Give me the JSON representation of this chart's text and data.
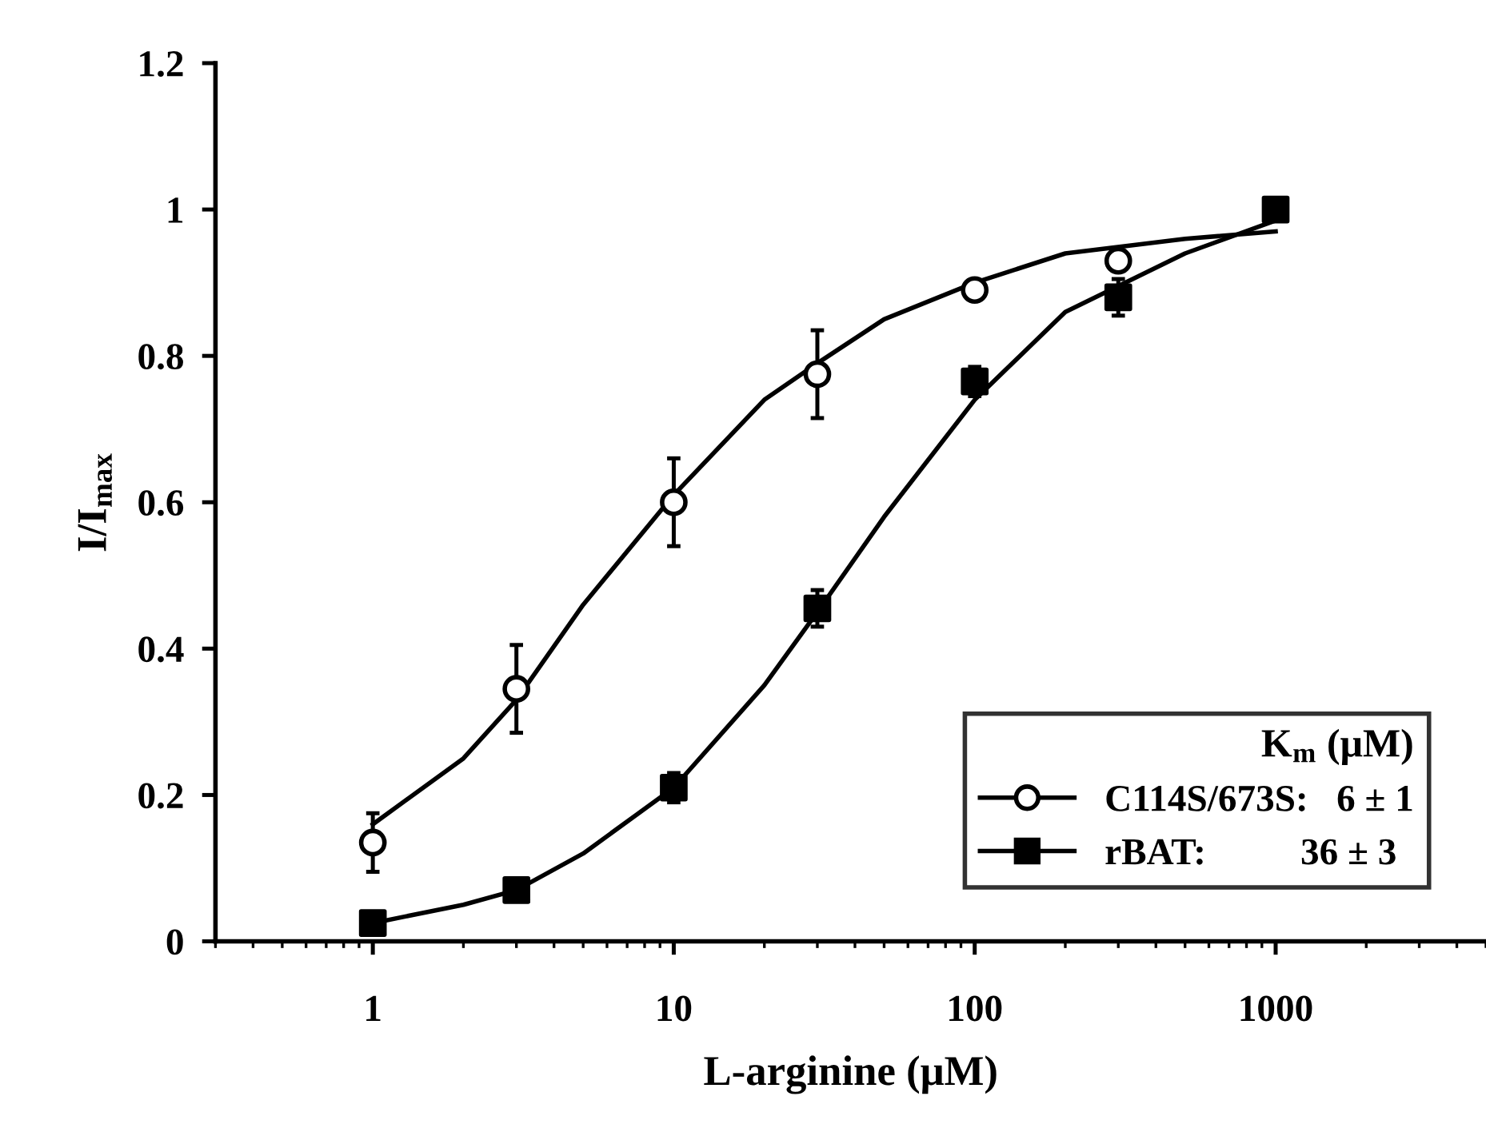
{
  "chart_data": {
    "type": "scatter",
    "xlabel": "L-arginine (μM)",
    "ylabel": "I/I$_{max}$",
    "legend_title": "K$_{m}$ (μM)",
    "legend": "bottom right",
    "log": "x",
    "grid": false,
    "xlim": [
      0.3,
      5000
    ],
    "xticks": [
      1,
      10,
      100,
      1000
    ],
    "ylim": [
      0,
      1.2
    ],
    "yticks": [
      0,
      0.2,
      0.4,
      0.6,
      0.8,
      1,
      1.2
    ],
    "series": [
      {
        "name": "C114S/673S:   6 ± 1",
        "color": "#000000",
        "marker": "circle",
        "x": [
          1,
          3,
          10,
          30,
          100,
          300
        ],
        "values": [
          0.135,
          0.345,
          0.6,
          0.775,
          0.89,
          0.93
        ],
        "errors": [
          0.04,
          0.06,
          0.06,
          0.06,
          null,
          null
        ]
      },
      {
        "name": "rBAT:          36 ± 3",
        "color": "#000000",
        "marker": "square",
        "x": [
          1,
          3,
          10,
          30,
          100,
          300,
          1000
        ],
        "values": [
          0.025,
          0.07,
          0.21,
          0.455,
          0.765,
          0.88,
          1.0
        ],
        "errors": [
          null,
          null,
          0.02,
          0.025,
          0.02,
          0.025,
          null
        ]
      },
      {
        "type": "line",
        "color": "#000000",
        "marker": "none",
        "x": [
          1,
          2,
          3,
          5,
          10,
          20,
          30,
          50,
          100,
          200,
          500,
          1000
        ],
        "values": [
          0.16,
          0.25,
          0.33,
          0.46,
          0.61,
          0.74,
          0.79,
          0.85,
          0.9,
          0.94,
          0.96,
          0.97
        ]
      },
      {
        "type": "line",
        "color": "#000000",
        "marker": "none",
        "x": [
          1,
          2,
          3,
          5,
          10,
          20,
          30,
          50,
          100,
          200,
          500,
          1000
        ],
        "values": [
          0.025,
          0.05,
          0.07,
          0.12,
          0.21,
          0.35,
          0.45,
          0.58,
          0.74,
          0.86,
          0.94,
          0.985
        ]
      }
    ]
  }
}
